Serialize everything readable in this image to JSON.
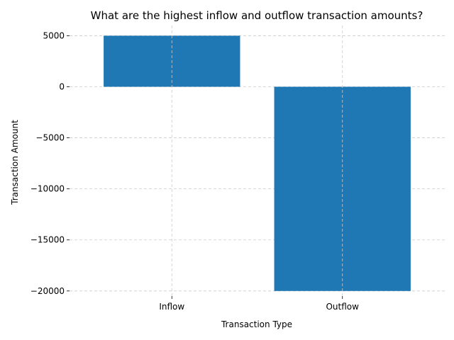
{
  "chart_data": {
    "type": "bar",
    "title": "What are the highest inflow and outflow transaction amounts?",
    "xlabel": "Transaction Type",
    "ylabel": "Transaction Amount",
    "categories": [
      "Inflow",
      "Outflow"
    ],
    "values": [
      5000,
      -20000
    ],
    "ylim": [
      -20500,
      6000
    ],
    "yticks": [
      5000,
      0,
      -5000,
      -10000,
      -15000,
      -20000
    ],
    "ytick_labels": [
      "5000",
      "0",
      "−5000",
      "−10000",
      "−15000",
      "−20000"
    ],
    "grid": true,
    "bar_color": "#1f77b4",
    "grid_color": "#cccccc"
  }
}
